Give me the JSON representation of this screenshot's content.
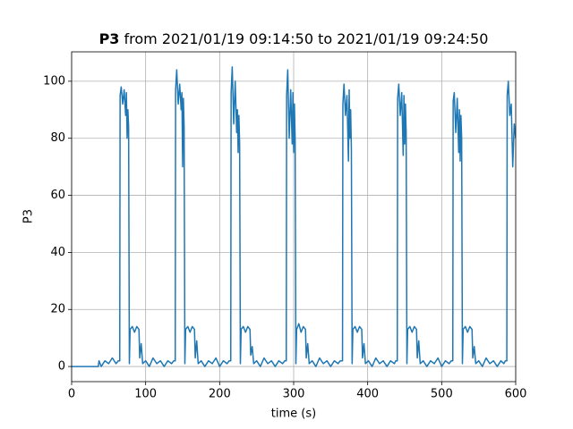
{
  "chart_data": {
    "type": "line",
    "title": {
      "bold": "P3",
      "text": "from 2021/01/19 09:14:50 to 2021/01/19 09:24:50"
    },
    "x_label": "time (s)",
    "y_label": "P3",
    "x": [
      0,
      36,
      37,
      40,
      45,
      50,
      55,
      60,
      63,
      65,
      65.5,
      67,
      69,
      71,
      73,
      74,
      75,
      76,
      77,
      78,
      79,
      82,
      85,
      88,
      91,
      92,
      94,
      96,
      100,
      105,
      110,
      115,
      120,
      125,
      130,
      135,
      138,
      140,
      140.5,
      142,
      144,
      146,
      148,
      149,
      150,
      151,
      152,
      153,
      154,
      157,
      160,
      163,
      166,
      167,
      169,
      171,
      175,
      180,
      185,
      190,
      195,
      200,
      205,
      210,
      213,
      215,
      215.5,
      217,
      219,
      221,
      223,
      224,
      225,
      226,
      227,
      228,
      229,
      232,
      235,
      238,
      241,
      242,
      244,
      246,
      250,
      255,
      260,
      265,
      270,
      275,
      280,
      285,
      288,
      290,
      290.5,
      292,
      294,
      296,
      298,
      299,
      300,
      301,
      302,
      303,
      304,
      307,
      310,
      313,
      316,
      317,
      319,
      321,
      325,
      330,
      335,
      340,
      345,
      350,
      355,
      360,
      363,
      366,
      366.5,
      368,
      370,
      372,
      374,
      375,
      376,
      377,
      378,
      379,
      380,
      383,
      386,
      389,
      392,
      393,
      395,
      397,
      401,
      406,
      411,
      416,
      421,
      426,
      431,
      436,
      438,
      440,
      440.5,
      442,
      444,
      446,
      448,
      449,
      450,
      451,
      452,
      453,
      454,
      457,
      460,
      463,
      466,
      467,
      469,
      471,
      475,
      480,
      485,
      490,
      495,
      500,
      505,
      510,
      513,
      515,
      515.5,
      517,
      519,
      521,
      523,
      524,
      525,
      526,
      527,
      528,
      529,
      532,
      535,
      538,
      541,
      542,
      544,
      546,
      550,
      555,
      560,
      565,
      570,
      575,
      580,
      584,
      586,
      588,
      588.5,
      590,
      592,
      594,
      596,
      598,
      600
    ],
    "series": [
      {
        "name": "P3",
        "color": "#1f77b4",
        "values": [
          0,
          0,
          2,
          0,
          2,
          1,
          3,
          1,
          2,
          2,
          95,
          98,
          92,
          97,
          88,
          96,
          80,
          90,
          84,
          1,
          13,
          14,
          12,
          14,
          13,
          3,
          8,
          1,
          2,
          0,
          3,
          1,
          2,
          0,
          2,
          1,
          2,
          2,
          97,
          104,
          92,
          99,
          90,
          96,
          70,
          94,
          84,
          1,
          13,
          14,
          12,
          14,
          13,
          3,
          9,
          1,
          2,
          0,
          2,
          1,
          3,
          0,
          2,
          1,
          2,
          2,
          96,
          105,
          85,
          100,
          82,
          90,
          75,
          88,
          78,
          1,
          13,
          14,
          12,
          14,
          13,
          4,
          7,
          1,
          2,
          0,
          3,
          1,
          2,
          0,
          2,
          1,
          2,
          2,
          95,
          104,
          80,
          97,
          78,
          96,
          75,
          92,
          80,
          1,
          13,
          15,
          12,
          14,
          13,
          3,
          8,
          1,
          2,
          0,
          3,
          1,
          2,
          0,
          2,
          1,
          2,
          2,
          92,
          99,
          88,
          95,
          72,
          97,
          80,
          90,
          76,
          1,
          13,
          14,
          12,
          14,
          13,
          3,
          8,
          1,
          2,
          0,
          3,
          1,
          2,
          0,
          2,
          1,
          2,
          2,
          94,
          99,
          88,
          96,
          74,
          95,
          78,
          92,
          82,
          1,
          13,
          14,
          12,
          14,
          13,
          3,
          9,
          1,
          2,
          0,
          2,
          1,
          3,
          0,
          2,
          1,
          2,
          2,
          93,
          96,
          82,
          94,
          75,
          90,
          72,
          88,
          80,
          1,
          13,
          14,
          12,
          14,
          13,
          3,
          7,
          1,
          2,
          0,
          3,
          1,
          2,
          0,
          2,
          1,
          2,
          2,
          95,
          100,
          88,
          92,
          70,
          85,
          80
        ]
      }
    ],
    "xlim": [
      0,
      600
    ],
    "xticks": [
      0,
      100,
      200,
      300,
      400,
      500,
      600
    ],
    "ylim": [
      -5.3,
      110.3
    ],
    "yticks": [
      0,
      20,
      40,
      60,
      80,
      100
    ],
    "grid": true
  }
}
